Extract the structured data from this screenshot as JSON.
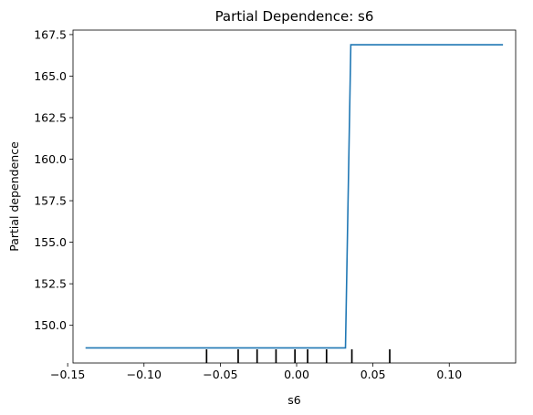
{
  "chart_data": {
    "type": "line",
    "title": "Partial Dependence: s6",
    "xlabel": "s6",
    "ylabel": "Partial dependence",
    "xlim": [
      -0.1465,
      0.1435
    ],
    "ylim": [
      147.73,
      167.77
    ],
    "xticks": [
      -0.15,
      -0.1,
      -0.05,
      0.0,
      0.05,
      0.1
    ],
    "xtick_labels": [
      "−0.15",
      "−0.10",
      "−0.05",
      "0.00",
      "0.05",
      "0.10"
    ],
    "yticks": [
      150.0,
      152.5,
      155.0,
      157.5,
      160.0,
      162.5,
      165.0,
      167.5
    ],
    "ytick_labels": [
      "150.0",
      "152.5",
      "155.0",
      "157.5",
      "160.0",
      "162.5",
      "165.0",
      "167.5"
    ],
    "grid": false,
    "series": [
      {
        "x": [
          -0.1383,
          0.032,
          0.0355,
          0.1352
        ],
        "y": [
          148.64,
          148.64,
          166.89,
          166.89
        ],
        "color": "#1f77b4"
      }
    ],
    "deciles": [
      -0.059,
      -0.0383,
      -0.0259,
      -0.0135,
      -0.0011,
      0.0072,
      0.0196,
      0.0362,
      0.061
    ],
    "colors": {
      "line": "#1f77b4",
      "rug": "#000000",
      "axes": "#000000"
    }
  }
}
